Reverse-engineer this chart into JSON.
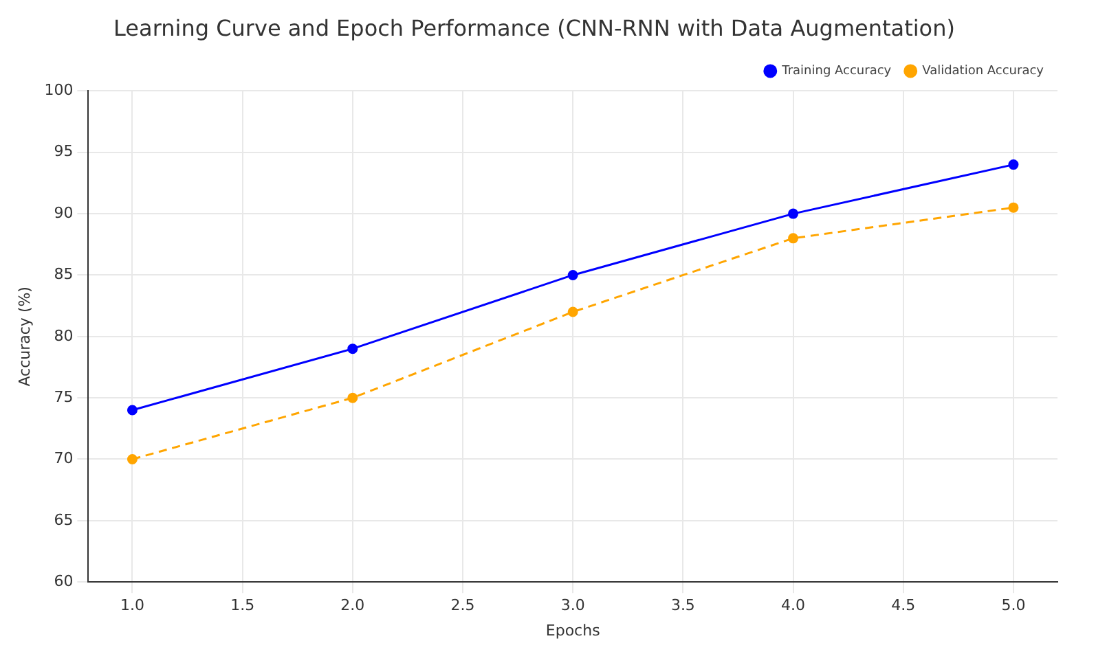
{
  "chart_data": {
    "type": "line",
    "title": "Learning Curve and Epoch Performance (CNN-RNN with Data Augmentation)",
    "xlabel": "Epochs",
    "ylabel": "Accuracy (%)",
    "x": [
      1,
      2,
      3,
      4,
      5
    ],
    "series": [
      {
        "name": "Training Accuracy",
        "color": "#0000ff",
        "values": [
          74,
          79,
          85,
          90,
          94
        ],
        "line_style": "solid"
      },
      {
        "name": "Validation Accuracy",
        "color": "#ffa500",
        "values": [
          70,
          75,
          82,
          88,
          90.5
        ],
        "line_style": "dashed"
      }
    ],
    "xlim": [
      0.8,
      5.2
    ],
    "xticks": [
      {
        "value": 1,
        "label": "1.0"
      },
      {
        "value": 1.5,
        "label": "1.5"
      },
      {
        "value": 2,
        "label": "2.0"
      },
      {
        "value": 2.5,
        "label": "2.5"
      },
      {
        "value": 3,
        "label": "3.0"
      },
      {
        "value": 3.5,
        "label": "3.5"
      },
      {
        "value": 4,
        "label": "4.0"
      },
      {
        "value": 4.5,
        "label": "4.5"
      },
      {
        "value": 5,
        "label": "5.0"
      }
    ],
    "ylim": [
      60,
      100
    ],
    "yticks": [
      60,
      65,
      70,
      75,
      80,
      85,
      90,
      95,
      100
    ],
    "grid": true,
    "legend": "top right",
    "marker": "circle"
  }
}
